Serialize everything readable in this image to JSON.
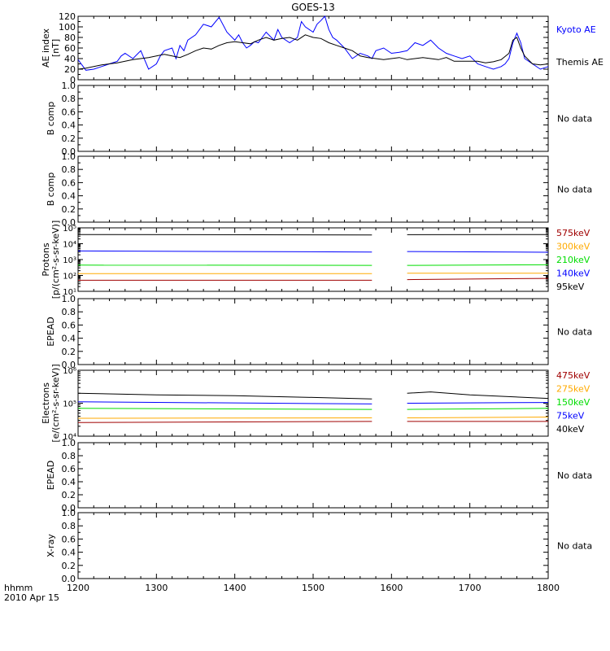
{
  "title": "GOES-13",
  "time_axis": {
    "label_line1": "hhmm",
    "label_line2": "2010 Apr 15",
    "ticks": [
      "1200",
      "1300",
      "1400",
      "1500",
      "1600",
      "1700",
      "1800"
    ]
  },
  "no_data_text": "No data",
  "colors": {
    "black": "#000000",
    "blue": "#0000ff",
    "green": "#00dd00",
    "orange": "#ffaa00",
    "red": "#a00000",
    "darkred": "#a00000"
  },
  "chart_data": [
    {
      "type": "line",
      "panel": "ae",
      "ylabel_line1": "AE index",
      "ylabel_line2": "[nT]",
      "x_range": [
        1200,
        1800
      ],
      "ylim": [
        0,
        120
      ],
      "yticks": [
        "0",
        "20",
        "40",
        "60",
        "80",
        "100",
        "120"
      ],
      "series": [
        {
          "name": "Kyoto AE",
          "color": "#0000ff",
          "x": [
            1200,
            1210,
            1220,
            1230,
            1240,
            1250,
            1255,
            1260,
            1270,
            1280,
            1290,
            1300,
            1305,
            1310,
            1320,
            1325,
            1330,
            1335,
            1340,
            1350,
            1360,
            1370,
            1380,
            1390,
            1400,
            1405,
            1410,
            1415,
            1420,
            1425,
            1430,
            1440,
            1450,
            1455,
            1460,
            1470,
            1480,
            1485,
            1490,
            1500,
            1505,
            1510,
            1515,
            1520,
            1525,
            1530,
            1540,
            1550,
            1560,
            1570,
            1575,
            1580,
            1590,
            1600,
            1610,
            1620,
            1630,
            1640,
            1650,
            1660,
            1670,
            1680,
            1690,
            1700,
            1710,
            1720,
            1730,
            1740,
            1745,
            1750,
            1755,
            1760,
            1765,
            1770,
            1780,
            1790,
            1800
          ],
          "y": [
            38,
            18,
            20,
            25,
            30,
            35,
            45,
            50,
            40,
            55,
            20,
            30,
            45,
            55,
            60,
            40,
            65,
            55,
            75,
            85,
            105,
            100,
            118,
            90,
            75,
            85,
            70,
            60,
            65,
            72,
            70,
            90,
            75,
            95,
            80,
            70,
            80,
            110,
            100,
            90,
            105,
            112,
            120,
            95,
            80,
            75,
            60,
            40,
            50,
            45,
            40,
            55,
            60,
            50,
            52,
            55,
            70,
            65,
            75,
            60,
            50,
            45,
            40,
            45,
            30,
            25,
            20,
            25,
            30,
            40,
            70,
            88,
            70,
            40,
            30,
            20,
            25
          ]
        },
        {
          "name": "Themis AE",
          "color": "#000000",
          "x": [
            1200,
            1210,
            1220,
            1230,
            1240,
            1250,
            1260,
            1270,
            1280,
            1290,
            1300,
            1310,
            1320,
            1330,
            1340,
            1350,
            1360,
            1370,
            1380,
            1390,
            1400,
            1410,
            1420,
            1430,
            1440,
            1450,
            1460,
            1470,
            1480,
            1490,
            1500,
            1510,
            1520,
            1530,
            1540,
            1550,
            1560,
            1570,
            1580,
            1590,
            1600,
            1610,
            1620,
            1630,
            1640,
            1650,
            1660,
            1670,
            1680,
            1690,
            1700,
            1710,
            1720,
            1730,
            1740,
            1750,
            1755,
            1760,
            1765,
            1770,
            1780,
            1790,
            1800
          ],
          "y": [
            20,
            22,
            25,
            28,
            30,
            32,
            35,
            38,
            40,
            42,
            45,
            48,
            45,
            42,
            48,
            55,
            60,
            58,
            65,
            70,
            72,
            70,
            68,
            75,
            80,
            75,
            78,
            80,
            75,
            85,
            80,
            78,
            70,
            65,
            60,
            55,
            45,
            42,
            40,
            38,
            40,
            42,
            38,
            40,
            42,
            40,
            38,
            42,
            35,
            35,
            35,
            35,
            32,
            34,
            38,
            50,
            75,
            80,
            60,
            45,
            30,
            28,
            30
          ]
        }
      ]
    },
    {
      "type": "line",
      "panel": "b1",
      "ylabel": "B comp",
      "ylim": [
        0,
        1
      ],
      "yticks": [
        "0.0",
        "0.2",
        "0.4",
        "0.6",
        "0.8",
        "1.0"
      ],
      "status": "No data"
    },
    {
      "type": "line",
      "panel": "b2",
      "ylabel": "B comp",
      "ylim": [
        0,
        1
      ],
      "yticks": [
        "0.0",
        "0.2",
        "0.4",
        "0.6",
        "0.8",
        "1.0"
      ],
      "status": "No data"
    },
    {
      "type": "line",
      "panel": "protons",
      "ylabel_line1": "Protons",
      "ylabel_line2": "[p/(cm²-s-sr-keV)]",
      "yscale": "log",
      "ylim_exp": [
        1,
        5
      ],
      "yticks": [
        "10¹",
        "10²",
        "10³",
        "10⁴",
        "10⁵"
      ],
      "gap": [
        1575,
        1620
      ],
      "series": [
        {
          "name": "575keV",
          "color": "#a00000",
          "segments": [
            {
              "x": [
                1200,
                1575
              ],
              "y": [
                50,
                50
              ]
            },
            {
              "x": [
                1620,
                1800
              ],
              "y": [
                55,
                65
              ]
            }
          ]
        },
        {
          "name": "300keV",
          "color": "#ffaa00",
          "segments": [
            {
              "x": [
                1200,
                1575
              ],
              "y": [
                130,
                130
              ]
            },
            {
              "x": [
                1620,
                1800
              ],
              "y": [
                140,
                140
              ]
            }
          ]
        },
        {
          "name": "210keV",
          "color": "#00dd00",
          "segments": [
            {
              "x": [
                1200,
                1575
              ],
              "y": [
                450,
                430
              ]
            },
            {
              "x": [
                1620,
                1800
              ],
              "y": [
                430,
                470
              ]
            }
          ]
        },
        {
          "name": "140keV",
          "color": "#0000ff",
          "segments": [
            {
              "x": [
                1200,
                1575
              ],
              "y": [
                3500,
                3000
              ]
            },
            {
              "x": [
                1620,
                1800
              ],
              "y": [
                3200,
                2900
              ]
            }
          ]
        },
        {
          "name": "95keV",
          "color": "#000000",
          "segments": [
            {
              "x": [
                1200,
                1575
              ],
              "y": [
                38000,
                36000
              ]
            },
            {
              "x": [
                1620,
                1800
              ],
              "y": [
                37000,
                38000
              ]
            }
          ]
        }
      ]
    },
    {
      "type": "line",
      "panel": "epead1",
      "ylabel": "EPEAD",
      "ylim": [
        0,
        1
      ],
      "yticks": [
        "0.0",
        "0.2",
        "0.4",
        "0.6",
        "0.8",
        "1.0"
      ],
      "status": "No data"
    },
    {
      "type": "line",
      "panel": "electrons",
      "ylabel_line1": "Electrons",
      "ylabel_line2": "[e/(cm²-s-sr-keV)]",
      "yscale": "log",
      "ylim_exp": [
        4,
        6
      ],
      "yticks": [
        "10⁴",
        "10⁵",
        "10⁶"
      ],
      "gap": [
        1575,
        1620
      ],
      "series": [
        {
          "name": "475keV",
          "color": "#a00000",
          "segments": [
            {
              "x": [
                1200,
                1575
              ],
              "y": [
                26000,
                28000
              ]
            },
            {
              "x": [
                1620,
                1800
              ],
              "y": [
                28000,
                28000
              ]
            }
          ]
        },
        {
          "name": "275keV",
          "color": "#ffaa00",
          "segments": [
            {
              "x": [
                1200,
                1575
              ],
              "y": [
                35000,
                36000
              ]
            },
            {
              "x": [
                1620,
                1800
              ],
              "y": [
                36000,
                38000
              ]
            }
          ]
        },
        {
          "name": "150keV",
          "color": "#00dd00",
          "segments": [
            {
              "x": [
                1200,
                1575
              ],
              "y": [
                70000,
                65000
              ]
            },
            {
              "x": [
                1620,
                1800
              ],
              "y": [
                65000,
                70000
              ]
            }
          ]
        },
        {
          "name": "75keV",
          "color": "#0000ff",
          "segments": [
            {
              "x": [
                1200,
                1575
              ],
              "y": [
                110000,
                95000
              ]
            },
            {
              "x": [
                1620,
                1800
              ],
              "y": [
                100000,
                105000
              ]
            }
          ]
        },
        {
          "name": "40keV",
          "color": "#000000",
          "segments": [
            {
              "x": [
                1200,
                1300,
                1400,
                1500,
                1575
              ],
              "y": [
                200000,
                180000,
                170000,
                150000,
                135000
              ]
            },
            {
              "x": [
                1620,
                1650,
                1700,
                1800
              ],
              "y": [
                200000,
                220000,
                180000,
                140000
              ]
            }
          ]
        }
      ]
    },
    {
      "type": "line",
      "panel": "epead2",
      "ylabel": "EPEAD",
      "ylim": [
        0,
        1
      ],
      "yticks": [
        "0.0",
        "0.2",
        "0.4",
        "0.6",
        "0.8",
        "1.0"
      ],
      "status": "No data"
    },
    {
      "type": "line",
      "panel": "xray",
      "ylabel": "X-ray",
      "ylim": [
        0,
        1
      ],
      "yticks": [
        "0.0",
        "0.2",
        "0.4",
        "0.6",
        "0.8",
        "1.0"
      ],
      "status": "No data"
    }
  ]
}
